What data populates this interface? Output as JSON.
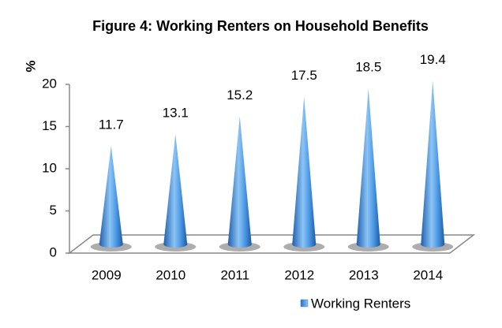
{
  "chart_data": {
    "type": "cone-bar",
    "title": "Figure 4: Working Renters on Household Benefits",
    "y_label": "%",
    "categories": [
      "2009",
      "2010",
      "2011",
      "2012",
      "2013",
      "2014"
    ],
    "series": [
      {
        "name": "Working Renters",
        "color": "#3a86d8",
        "values": [
          11.7,
          13.1,
          15.2,
          17.5,
          18.5,
          19.4
        ]
      }
    ],
    "ylim": [
      0,
      20
    ],
    "yticks": [
      0,
      5,
      10,
      15,
      20
    ],
    "data_labels": true,
    "legend": "bottom-right"
  }
}
